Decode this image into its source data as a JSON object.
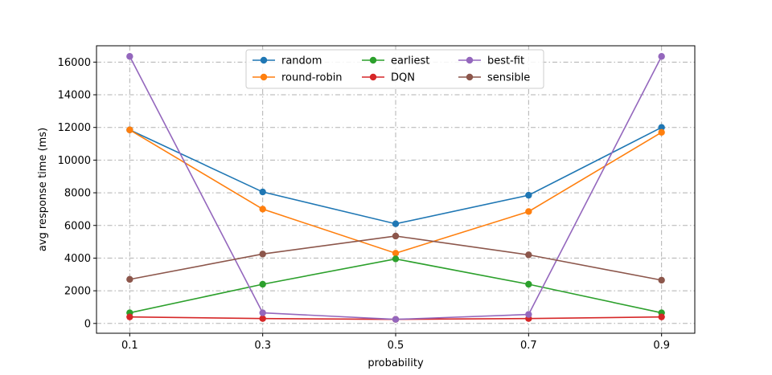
{
  "chart_data": {
    "type": "line",
    "title": "",
    "xlabel": "probability",
    "ylabel": "avg response time (ms)",
    "x": [
      0.1,
      0.3,
      0.5,
      0.7,
      0.9
    ],
    "x_tick_labels": [
      "0.1",
      "0.3",
      "0.5",
      "0.7",
      "0.9"
    ],
    "xlim": [
      0.05,
      0.95
    ],
    "ylim": [
      -600,
      17000
    ],
    "y_ticks": [
      0,
      2000,
      4000,
      6000,
      8000,
      10000,
      12000,
      14000,
      16000
    ],
    "y_tick_labels": [
      "0",
      "2000",
      "4000",
      "6000",
      "8000",
      "10000",
      "12000",
      "14000",
      "16000"
    ],
    "grid": true,
    "legend_position": "top-center",
    "series": [
      {
        "name": "random",
        "color": "#1f77b4",
        "values": [
          11850,
          8050,
          6100,
          7850,
          12000
        ]
      },
      {
        "name": "round-robin",
        "color": "#ff7f0e",
        "values": [
          11850,
          7000,
          4300,
          6850,
          11700
        ]
      },
      {
        "name": "earliest",
        "color": "#2ca02c",
        "values": [
          650,
          2400,
          3950,
          2400,
          650
        ]
      },
      {
        "name": "DQN",
        "color": "#d62728",
        "values": [
          400,
          300,
          250,
          300,
          400
        ]
      },
      {
        "name": "best-fit",
        "color": "#9467bd",
        "values": [
          16350,
          650,
          250,
          550,
          16350
        ]
      },
      {
        "name": "sensible",
        "color": "#8c564b",
        "values": [
          2700,
          4250,
          5350,
          4200,
          2650
        ]
      }
    ]
  }
}
